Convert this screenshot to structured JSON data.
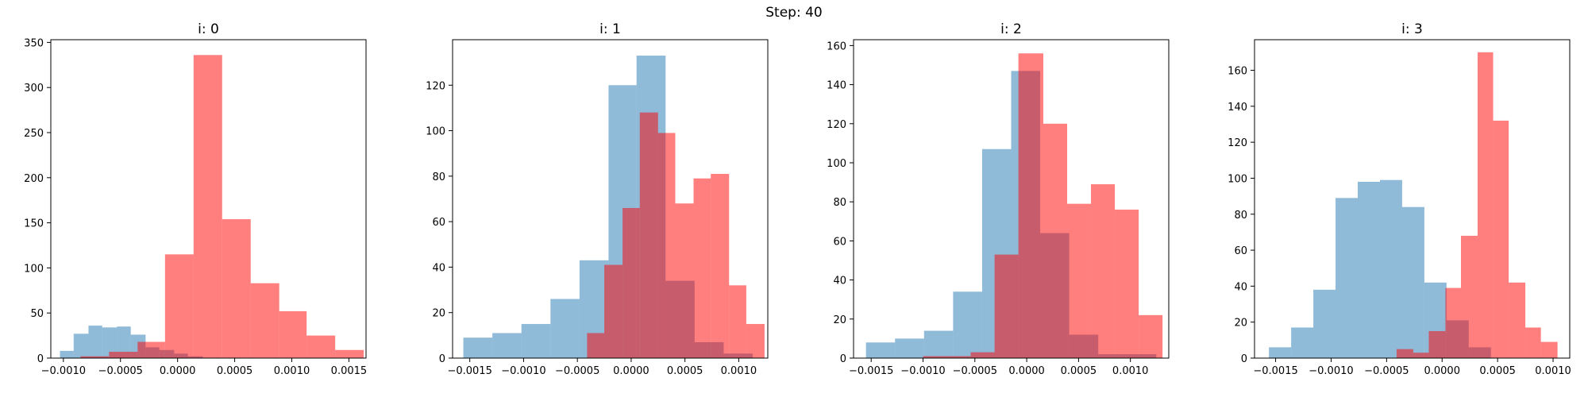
{
  "suptitle": "Step: 40",
  "colors": {
    "blue": "#1f77b4",
    "red": "#ff0000"
  },
  "chart_data": [
    {
      "type": "histogram",
      "title": "i: 0",
      "xlim": [
        -0.00111,
        0.00165
      ],
      "ylim": [
        0,
        353
      ],
      "xticks": [
        -0.001,
        -0.0005,
        0.0,
        0.0005,
        0.001,
        0.0015
      ],
      "xtick_labels": [
        "−0.0010",
        "−0.0005",
        "0.0000",
        "0.0005",
        "0.0010",
        "0.0015"
      ],
      "yticks": [
        0,
        50,
        100,
        150,
        200,
        250,
        300,
        350
      ],
      "series": [
        {
          "color": "blue",
          "alpha": 0.5,
          "bins": [
            -0.00103,
            -0.00091,
            -0.00078,
            -0.00066,
            -0.00053,
            -0.00041,
            -0.00028,
            -0.00016,
            -3e-05,
            9e-05,
            0.00022
          ],
          "counts": [
            8,
            27,
            36,
            34,
            35,
            26,
            12,
            9,
            5,
            2
          ]
        },
        {
          "color": "red",
          "alpha": 0.5,
          "bins": [
            -0.00085,
            -0.0006,
            -0.00035,
            -0.00011,
            0.00014,
            0.00039,
            0.00064,
            0.00089,
            0.00113,
            0.00138,
            0.00163
          ],
          "counts": [
            2,
            7,
            18,
            115,
            336,
            154,
            83,
            52,
            25,
            9
          ]
        }
      ]
    },
    {
      "type": "histogram",
      "title": "i: 1",
      "xlim": [
        -0.00166,
        0.00127
      ],
      "ylim": [
        0,
        140
      ],
      "xticks": [
        -0.0015,
        -0.001,
        -0.0005,
        0.0,
        0.0005,
        0.001
      ],
      "xtick_labels": [
        "−0.0015",
        "−0.0010",
        "−0.0005",
        "0.0000",
        "0.0005",
        "0.0010"
      ],
      "yticks": [
        0,
        20,
        40,
        60,
        80,
        100,
        120
      ],
      "series": [
        {
          "color": "blue",
          "alpha": 0.5,
          "bins": [
            -0.00156,
            -0.00129,
            -0.00102,
            -0.00075,
            -0.00048,
            -0.00021,
            5e-05,
            0.00032,
            0.00059,
            0.00086,
            0.00113
          ],
          "counts": [
            9,
            11,
            15,
            26,
            43,
            120,
            133,
            34,
            7,
            2
          ]
        },
        {
          "color": "red",
          "alpha": 0.5,
          "bins": [
            -0.00041,
            -0.00025,
            -8e-05,
            8e-05,
            0.00025,
            0.00041,
            0.00058,
            0.00074,
            0.00091,
            0.00107,
            0.00124
          ],
          "counts": [
            11,
            41,
            66,
            108,
            99,
            68,
            79,
            81,
            32,
            15
          ]
        }
      ]
    },
    {
      "type": "histogram",
      "title": "i: 2",
      "xlim": [
        -0.00167,
        0.00137
      ],
      "ylim": [
        0,
        163
      ],
      "xticks": [
        -0.0015,
        -0.001,
        -0.0005,
        0.0,
        0.0005,
        0.001
      ],
      "xtick_labels": [
        "−0.0015",
        "−0.0010",
        "−0.0005",
        "0.0000",
        "0.0005",
        "0.0010"
      ],
      "yticks": [
        0,
        20,
        40,
        60,
        80,
        100,
        120,
        140,
        160
      ],
      "series": [
        {
          "color": "blue",
          "alpha": 0.5,
          "bins": [
            -0.00155,
            -0.00127,
            -0.00099,
            -0.00071,
            -0.00043,
            -0.00015,
            0.00013,
            0.00041,
            0.00069,
            0.00097,
            0.00125
          ],
          "counts": [
            8,
            10,
            14,
            34,
            107,
            147,
            64,
            12,
            2,
            2
          ]
        },
        {
          "color": "red",
          "alpha": 0.5,
          "bins": [
            -0.001,
            -0.00077,
            -0.00054,
            -0.00031,
            -8e-05,
            0.00016,
            0.00039,
            0.00062,
            0.00085,
            0.00108,
            0.00131
          ],
          "counts": [
            1,
            1,
            3,
            53,
            156,
            120,
            79,
            89,
            76,
            22
          ]
        }
      ]
    },
    {
      "type": "histogram",
      "title": "i: 3",
      "xlim": [
        -0.00169,
        0.00115
      ],
      "ylim": [
        0,
        177
      ],
      "xticks": [
        -0.0015,
        -0.001,
        -0.0005,
        0.0,
        0.0005,
        0.001
      ],
      "xtick_labels": [
        "−0.0015",
        "−0.0010",
        "−0.0005",
        "0.0000",
        "0.0005",
        "0.0010"
      ],
      "yticks": [
        0,
        20,
        40,
        60,
        80,
        100,
        120,
        140,
        160
      ],
      "series": [
        {
          "color": "blue",
          "alpha": 0.5,
          "bins": [
            -0.00156,
            -0.00136,
            -0.00116,
            -0.00096,
            -0.00076,
            -0.00056,
            -0.00036,
            -0.00016,
            4e-05,
            0.00024,
            0.00044
          ],
          "counts": [
            6,
            17,
            38,
            89,
            98,
            99,
            84,
            42,
            21,
            6
          ]
        },
        {
          "color": "red",
          "alpha": 0.5,
          "bins": [
            -0.00041,
            -0.00026,
            -0.00012,
            3e-05,
            0.00017,
            0.00032,
            0.00046,
            0.0006,
            0.00075,
            0.00089,
            0.00104
          ],
          "counts": [
            5,
            3,
            15,
            39,
            68,
            170,
            132,
            42,
            17,
            9
          ]
        }
      ]
    }
  ]
}
